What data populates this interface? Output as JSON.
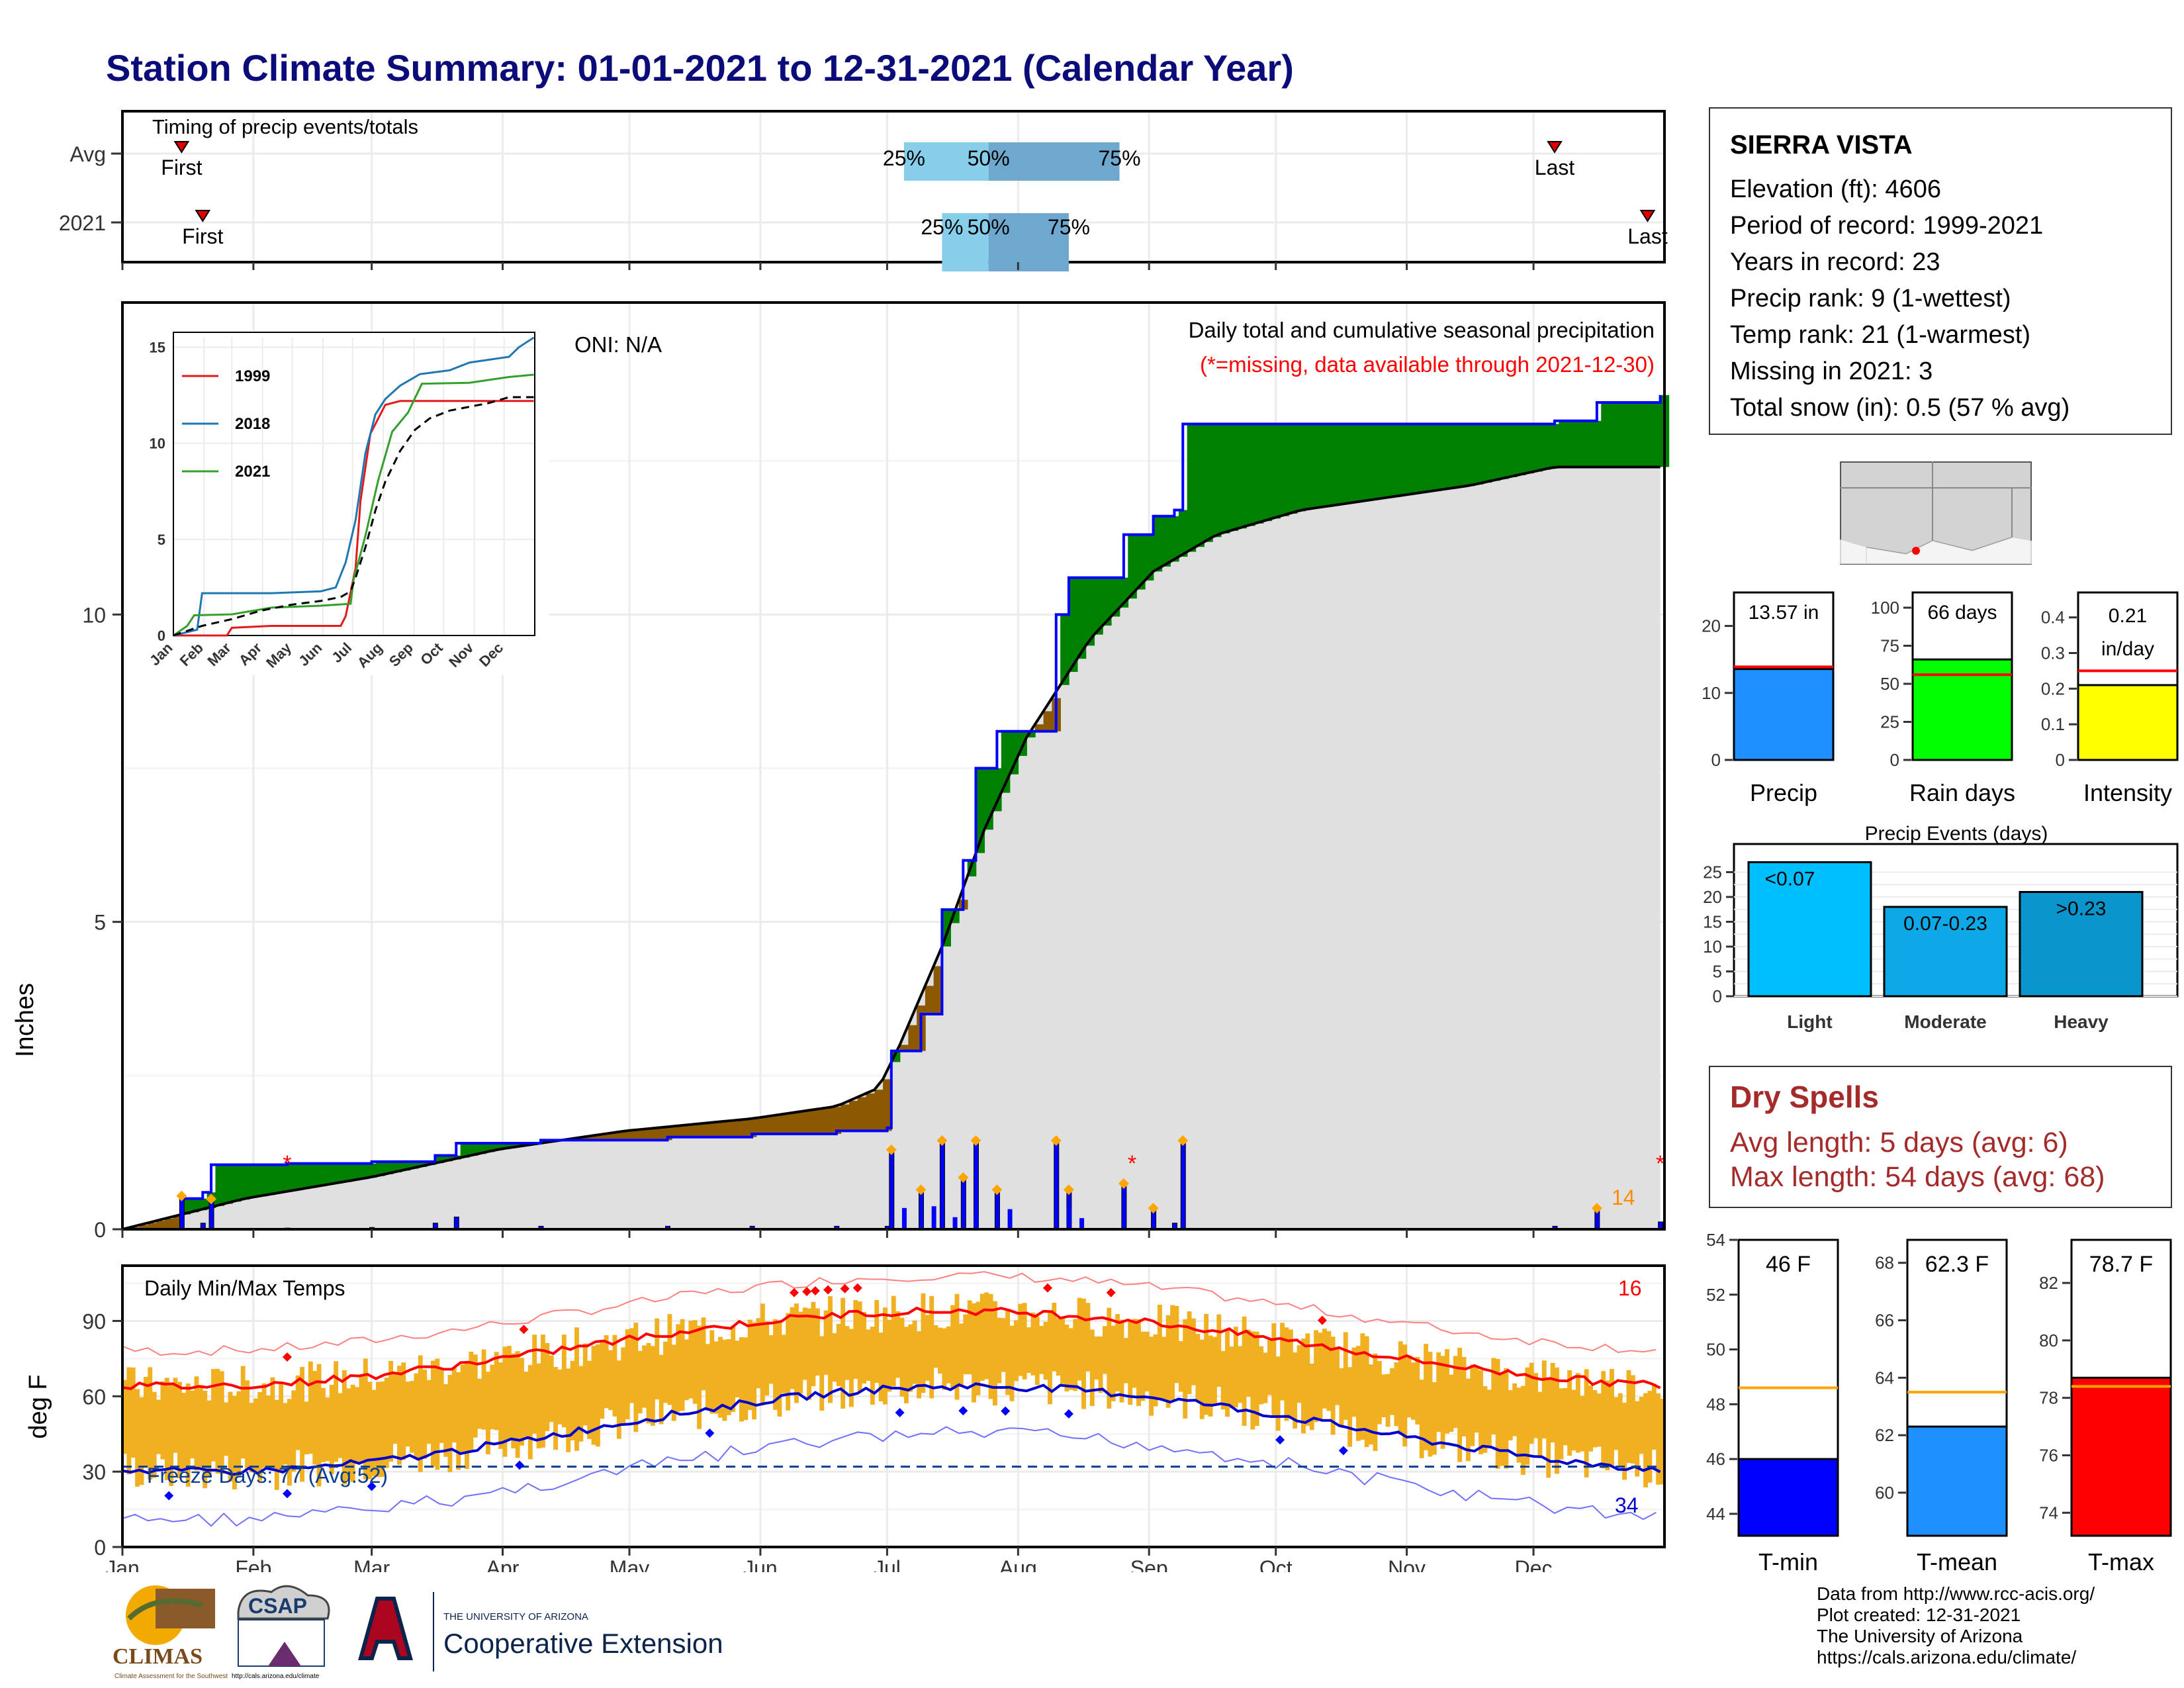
{
  "title": "Station Climate Summary: 01-01-2021 to 12-31-2021 (Calendar Year)",
  "timing_panel": {
    "label": "Timing of precip events/totals",
    "rows": [
      {
        "name": "Avg",
        "first_label": "First",
        "last_label": "Last",
        "first_day": 15,
        "last_day": 340,
        "p25": 186,
        "p50": 206,
        "p75": 237,
        "p25_label": "25%",
        "p50_label": "50%",
        "p75_label": "75%"
      },
      {
        "name": "2021",
        "first_label": "First",
        "last_label": "Last",
        "first_day": 20,
        "last_day": 362,
        "p25": 195,
        "p50": 206,
        "p75": 225,
        "p25_label": "25%",
        "p50_label": "50%",
        "p75_label": "75%"
      }
    ],
    "colors": {
      "q1": "#87ceeb",
      "q2": "#6fa8cf",
      "marker": "#e00000"
    }
  },
  "precip_panel": {
    "ylabel": "Inches",
    "yticks": [
      0,
      5,
      10
    ],
    "ylim": [
      0,
      15
    ],
    "oni": "ONI: N/A",
    "note1": "Daily total and cumulative seasonal precipitation",
    "note2": "(*=missing, data available through 2021-12-30)",
    "count_label": "14",
    "colors": {
      "above": "#008000",
      "below": "#8b5a00",
      "normal_fill": "#e0e0e0",
      "obs_line": "#0000ff"
    }
  },
  "inset_chart": {
    "series_names": [
      "1999",
      "2018",
      "2021"
    ],
    "series_colors": [
      "#e31a1c",
      "#1f78b4",
      "#33a02c"
    ],
    "yticks": [
      0,
      5,
      10,
      15
    ],
    "months": [
      "Jan",
      "Feb",
      "Mar",
      "Apr",
      "May",
      "Jun",
      "Jul",
      "Aug",
      "Sep",
      "Oct",
      "Nov",
      "Dec"
    ]
  },
  "temp_panel": {
    "title": "Daily Min/Max Temps",
    "ylabel": "deg F",
    "yticks": [
      0,
      30,
      60,
      90
    ],
    "ylim": [
      0,
      112
    ],
    "freeze_label": "Freeze Days: 77 (Avg:52)",
    "hot_count": "16",
    "cold_count": "34",
    "colors": {
      "range": "#f0b020",
      "max": "#ff0000",
      "min": "#0000cd"
    }
  },
  "months": [
    "Jan",
    "Feb",
    "Mar",
    "Apr",
    "May",
    "Jun",
    "Jul",
    "Aug",
    "Sep",
    "Oct",
    "Nov",
    "Dec"
  ],
  "station": {
    "name": "SIERRA VISTA",
    "elevation": "Elevation (ft): 4606",
    "period": "Period of record: 1999-2021",
    "years": "Years in record: 23",
    "precip_rank": "Precip rank: 9 (1-wettest)",
    "temp_rank": "Temp rank: 21 (1-warmest)",
    "missing": "Missing in 2021: 3",
    "snow": "Total snow (in): 0.5 (57 % avg)"
  },
  "chart_data": [
    {
      "type": "line",
      "title": "Daily total and cumulative seasonal precipitation",
      "ylabel": "Inches",
      "ylim": [
        0,
        15
      ],
      "series": [
        {
          "name": "2021 cumulative",
          "x": [
            1,
            15,
            20,
            22,
            40,
            60,
            75,
            80,
            100,
            130,
            150,
            170,
            182,
            183,
            190,
            195,
            200,
            203,
            208,
            215,
            222,
            225,
            230,
            238,
            245,
            250,
            252,
            270,
            275,
            340,
            350,
            365
          ],
          "y": [
            0,
            0.5,
            0.6,
            1.05,
            1.07,
            1.1,
            1.2,
            1.4,
            1.45,
            1.5,
            1.55,
            1.6,
            1.65,
            2.9,
            3.5,
            5.2,
            6.0,
            7.5,
            8.1,
            8.1,
            10.0,
            10.6,
            10.6,
            11.3,
            11.6,
            11.7,
            13.1,
            13.1,
            13.1,
            13.15,
            13.45,
            13.57
          ]
        },
        {
          "name": "Avg cumulative",
          "x": [
            1,
            30,
            60,
            90,
            120,
            150,
            170,
            180,
            185,
            195,
            205,
            215,
            230,
            245,
            260,
            280,
            300,
            320,
            340,
            365
          ],
          "y": [
            0,
            0.5,
            0.85,
            1.3,
            1.6,
            1.8,
            2.0,
            2.3,
            3.0,
            4.6,
            6.5,
            8.0,
            9.6,
            10.7,
            11.3,
            11.7,
            11.9,
            12.1,
            12.4,
            12.4
          ]
        }
      ]
    },
    {
      "type": "bar",
      "title": "Precip",
      "categories": [
        "Precip"
      ],
      "values": [
        13.57
      ],
      "avg": 13.9,
      "label": "13.57 in",
      "ylim": [
        0,
        25
      ],
      "yticks": [
        0,
        10,
        20
      ],
      "color": "#1e90ff"
    },
    {
      "type": "bar",
      "title": "Rain days",
      "categories": [
        "Rain days"
      ],
      "values": [
        66
      ],
      "avg": 56,
      "label": "66 days",
      "ylim": [
        0,
        110
      ],
      "yticks": [
        0,
        25,
        50,
        75,
        100
      ],
      "color": "#00ff00"
    },
    {
      "type": "bar",
      "title": "Intensity",
      "categories": [
        "Intensity"
      ],
      "values": [
        0.21
      ],
      "avg": 0.25,
      "label_top": "0.21",
      "label_bottom": "in/day",
      "ylim": [
        0,
        0.47
      ],
      "yticks": [
        0.0,
        0.1,
        0.2,
        0.3,
        0.4
      ],
      "color": "#ffff00"
    },
    {
      "type": "bar",
      "title": "Precip Events (days)",
      "categories": [
        "Light",
        "Moderate",
        "Heavy"
      ],
      "bar_labels": [
        "<0.07",
        "0.07-0.23",
        ">0.23"
      ],
      "values": [
        27,
        18,
        21
      ],
      "ylim": [
        0,
        28
      ],
      "yticks": [
        0,
        5,
        10,
        15,
        20,
        25
      ],
      "colors": [
        "#00bfff",
        "#0ca9e6",
        "#0a96cc"
      ]
    },
    {
      "type": "bar",
      "title": "T-min",
      "categories": [
        "T-min"
      ],
      "values": [
        46
      ],
      "avg": 48.6,
      "label": "46 F",
      "ylim": [
        43.2,
        54
      ],
      "yticks": [
        44,
        46,
        48,
        50,
        52,
        54
      ],
      "color": "#0000ff"
    },
    {
      "type": "bar",
      "title": "T-mean",
      "categories": [
        "T-mean"
      ],
      "values": [
        62.3
      ],
      "avg": 63.5,
      "label": "62.3 F",
      "ylim": [
        58.5,
        68.8
      ],
      "yticks": [
        60,
        62,
        64,
        66,
        68
      ],
      "color": "#1e90ff"
    },
    {
      "type": "bar",
      "title": "T-max",
      "categories": [
        "T-max"
      ],
      "values": [
        78.7
      ],
      "avg": 78.4,
      "label": "78.7 F",
      "ylim": [
        73.2,
        83.5
      ],
      "yticks": [
        74,
        76,
        78,
        80,
        82
      ],
      "color": "#ff0000"
    }
  ],
  "dry_spells": {
    "title": "Dry Spells",
    "avg_length": "Avg length: 5 days (avg: 6)",
    "max_length": "Max length: 54 days (avg: 68)"
  },
  "credits": {
    "line1": "Data from http://www.rcc-acis.org/",
    "line2": "Plot created: 12-31-2021",
    "line3": "The University of Arizona",
    "line4": "https://cals.arizona.edu/climate/"
  },
  "logos": {
    "climas": "CLIMAS",
    "climas_sub": "Climate Assessment for the Southwest",
    "csap": "CSAP",
    "csap_url": "http://cals.arizona.edu/climate",
    "ua_small": "THE UNIVERSITY OF ARIZONA",
    "ua_big": "Cooperative Extension"
  }
}
